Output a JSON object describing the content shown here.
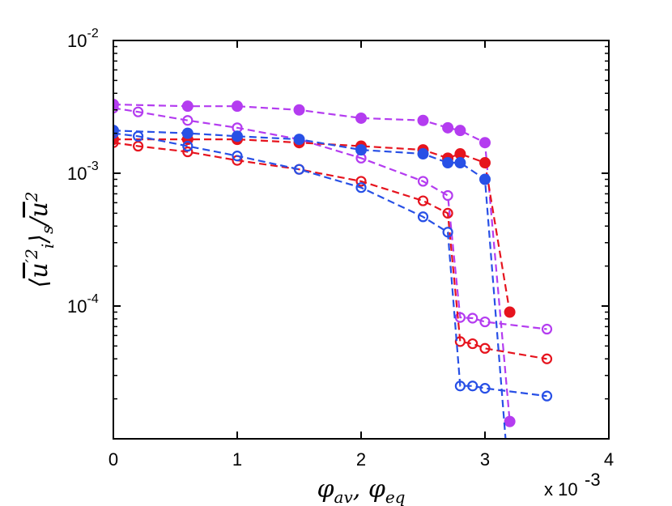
{
  "chart_data": {
    "type": "line",
    "title": "",
    "xlabel": "φ_av, φ_eq",
    "ylabel": "⟨u'_i²⟩_s / ū²",
    "x_multiplier_label": "x 10",
    "x_multiplier_exponent": "-3",
    "xlim": [
      0,
      0.004
    ],
    "ylim": [
      1e-05,
      0.01
    ],
    "y_scale": "log",
    "x_ticks": [
      0,
      0.001,
      0.002,
      0.003,
      0.004
    ],
    "x_tick_labels": [
      "0",
      "1",
      "2",
      "3",
      "4"
    ],
    "y_ticks": [
      0.01,
      0.001,
      0.0001
    ],
    "y_tick_labels": [
      {
        "base": "10",
        "exp": "-2"
      },
      {
        "base": "10",
        "exp": "-3"
      },
      {
        "base": "10",
        "exp": "-4"
      }
    ],
    "grid": false,
    "series": [
      {
        "color": "#b43cf0",
        "marker": "filled-circle",
        "x": [
          0,
          0.0006,
          0.001,
          0.0015,
          0.002,
          0.0025,
          0.0027,
          0.0028,
          0.003,
          0.0032
        ],
        "y": [
          0.0033,
          0.0032,
          0.0032,
          0.003,
          0.0026,
          0.0025,
          0.0022,
          0.0021,
          0.0017,
          1.35e-05
        ]
      },
      {
        "color": "#b43cf0",
        "marker": "open-circle",
        "x": [
          0,
          0.0002,
          0.0006,
          0.001,
          0.0015,
          0.002,
          0.0025,
          0.0027,
          0.0028,
          0.0029,
          0.003,
          0.0035
        ],
        "y": [
          0.0031,
          0.0029,
          0.0025,
          0.0022,
          0.0018,
          0.0013,
          0.00087,
          0.00068,
          8.2e-05,
          8.1e-05,
          7.6e-05,
          6.7e-05
        ]
      },
      {
        "color": "#e6141e",
        "marker": "filled-circle",
        "x": [
          0,
          0.0006,
          0.001,
          0.0015,
          0.002,
          0.0025,
          0.0027,
          0.0028,
          0.003,
          0.0032
        ],
        "y": [
          0.0018,
          0.0018,
          0.0018,
          0.0017,
          0.0016,
          0.0015,
          0.0013,
          0.0014,
          0.0012,
          9e-05
        ]
      },
      {
        "color": "#e6141e",
        "marker": "open-circle",
        "x": [
          0,
          0.0002,
          0.0006,
          0.001,
          0.0015,
          0.002,
          0.0025,
          0.0027,
          0.0028,
          0.0029,
          0.003,
          0.0035
        ],
        "y": [
          0.0017,
          0.0016,
          0.00145,
          0.00125,
          0.00107,
          0.00087,
          0.00062,
          0.0005,
          5.4e-05,
          5.2e-05,
          4.8e-05,
          4e-05
        ]
      },
      {
        "color": "#2850e6",
        "marker": "filled-circle",
        "x": [
          0,
          0.0006,
          0.001,
          0.0015,
          0.002,
          0.0025,
          0.0027,
          0.0028,
          0.003,
          0.0032
        ],
        "y": [
          0.0021,
          0.002,
          0.0019,
          0.0018,
          0.0015,
          0.0014,
          0.0012,
          0.0012,
          0.0009,
          4e-06
        ]
      },
      {
        "color": "#2850e6",
        "marker": "open-circle",
        "x": [
          0,
          0.0002,
          0.0006,
          0.001,
          0.0015,
          0.002,
          0.0025,
          0.0027,
          0.0028,
          0.0029,
          0.003,
          0.0035
        ],
        "y": [
          0.002,
          0.0019,
          0.0016,
          0.00135,
          0.00107,
          0.00078,
          0.00047,
          0.00036,
          2.5e-05,
          2.5e-05,
          2.4e-05,
          2.1e-05
        ]
      }
    ]
  }
}
